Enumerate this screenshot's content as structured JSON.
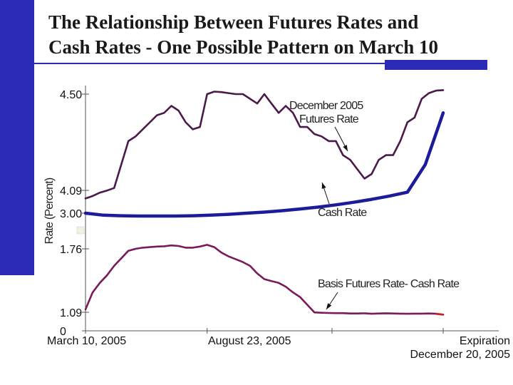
{
  "colors": {
    "accent": "#2b2bb8",
    "futures_line": "#4a1a4a",
    "cash_line": "#1c1c9a",
    "basis_line": "#7a1a5a",
    "basis_tail": "#cc2222"
  },
  "title_lines": [
    "The Relationship Between Futures Rates and",
    "Cash Rates -  One Possible Pattern on March 10"
  ],
  "chart_data": {
    "type": "line",
    "title": "The Relationship Between Futures Rates and Cash Rates -  One Possible Pattern on March 10",
    "ylabel": "Rate (Percent)",
    "xlabel": "",
    "y_tick_labels": [
      "4.50",
      "4.09",
      "3.00",
      "1.76",
      "1.09",
      "0"
    ],
    "y_tick_values": [
      4.5,
      4.09,
      3.0,
      1.76,
      1.09,
      0
    ],
    "x_tick_labels": [
      {
        "lines": [
          "March 10, 2005"
        ]
      },
      {
        "lines": [
          "August 23, 2005"
        ]
      },
      {
        "lines": [
          "Expiration",
          "December 20, 2005"
        ]
      }
    ],
    "x_tick_values": [
      0,
      0.34,
      1.0
    ],
    "xlim": [
      0,
      1
    ],
    "ylim": [
      0,
      4.7
    ],
    "grid": false,
    "annotations": [
      {
        "lines": [
          "December 2005",
          "Futures Rate"
        ],
        "target_series": "futures"
      },
      {
        "lines": [
          "Cash Rate"
        ],
        "target_series": "cash"
      },
      {
        "lines": [
          "Basis   Futures Rate- Cash Rate"
        ],
        "target_series": "basis"
      }
    ],
    "series": [
      {
        "id": "futures",
        "x": [
          0.0,
          0.02,
          0.04,
          0.06,
          0.08,
          0.1,
          0.12,
          0.14,
          0.16,
          0.18,
          0.2,
          0.22,
          0.24,
          0.26,
          0.28,
          0.3,
          0.32,
          0.34,
          0.36,
          0.38,
          0.4,
          0.42,
          0.44,
          0.46,
          0.48,
          0.5,
          0.52,
          0.54,
          0.56,
          0.58,
          0.6,
          0.62,
          0.64,
          0.66,
          0.68,
          0.7,
          0.72,
          0.74,
          0.76,
          0.78,
          0.8,
          0.82,
          0.84,
          0.86,
          0.88,
          0.9,
          0.92,
          0.94,
          0.96,
          0.98,
          1.0
        ],
        "y": [
          3.7,
          3.82,
          3.98,
          4.08,
          4.1,
          4.2,
          4.3,
          4.32,
          4.35,
          4.38,
          4.41,
          4.42,
          4.45,
          4.43,
          4.38,
          4.35,
          4.36,
          4.5,
          4.55,
          4.54,
          4.52,
          4.5,
          4.5,
          4.48,
          4.46,
          4.5,
          4.46,
          4.42,
          4.45,
          4.42,
          4.36,
          4.36,
          4.33,
          4.32,
          4.3,
          4.3,
          4.24,
          4.22,
          4.18,
          4.14,
          4.16,
          4.22,
          4.24,
          4.24,
          4.3,
          4.38,
          4.4,
          4.48,
          4.52,
          4.57,
          4.58
        ]
      },
      {
        "id": "cash",
        "x": [
          0.0,
          0.05,
          0.1,
          0.15,
          0.2,
          0.25,
          0.3,
          0.35,
          0.4,
          0.45,
          0.5,
          0.55,
          0.6,
          0.65,
          0.7,
          0.75,
          0.8,
          0.85,
          0.9,
          0.95,
          1.0
        ],
        "y": [
          3.0,
          2.93,
          2.91,
          2.9,
          2.9,
          2.9,
          2.91,
          2.93,
          2.96,
          3.0,
          3.05,
          3.12,
          3.2,
          3.29,
          3.4,
          3.52,
          3.66,
          3.82,
          4.0,
          4.2,
          4.42
        ]
      },
      {
        "id": "basis",
        "x": [
          0.0,
          0.02,
          0.04,
          0.06,
          0.08,
          0.1,
          0.12,
          0.14,
          0.16,
          0.18,
          0.2,
          0.22,
          0.24,
          0.26,
          0.28,
          0.3,
          0.32,
          0.34,
          0.36,
          0.38,
          0.4,
          0.42,
          0.44,
          0.46,
          0.48,
          0.5,
          0.52,
          0.54,
          0.56,
          0.58,
          0.6,
          0.62,
          0.64,
          0.66,
          0.68,
          0.7,
          0.72,
          0.74,
          0.76,
          0.78,
          0.8,
          0.82,
          0.84,
          0.86,
          0.88,
          0.9,
          0.92,
          0.94,
          0.96,
          0.98,
          1.0
        ],
        "y": [
          1.12,
          1.3,
          1.4,
          1.48,
          1.58,
          1.66,
          1.74,
          1.76,
          1.8,
          1.82,
          1.84,
          1.85,
          1.88,
          1.86,
          1.8,
          1.8,
          1.84,
          1.9,
          1.82,
          1.72,
          1.68,
          1.65,
          1.62,
          1.58,
          1.5,
          1.44,
          1.42,
          1.4,
          1.36,
          1.3,
          1.25,
          1.17,
          1.08,
          1.06,
          1.05,
          1.04,
          1.04,
          1.02,
          1.02,
          1.03,
          1.0,
          1.02,
          1.03,
          1.02,
          1.01,
          1.0,
          1.01,
          1.01,
          1.02,
          1.0,
          0.95
        ]
      }
    ]
  }
}
